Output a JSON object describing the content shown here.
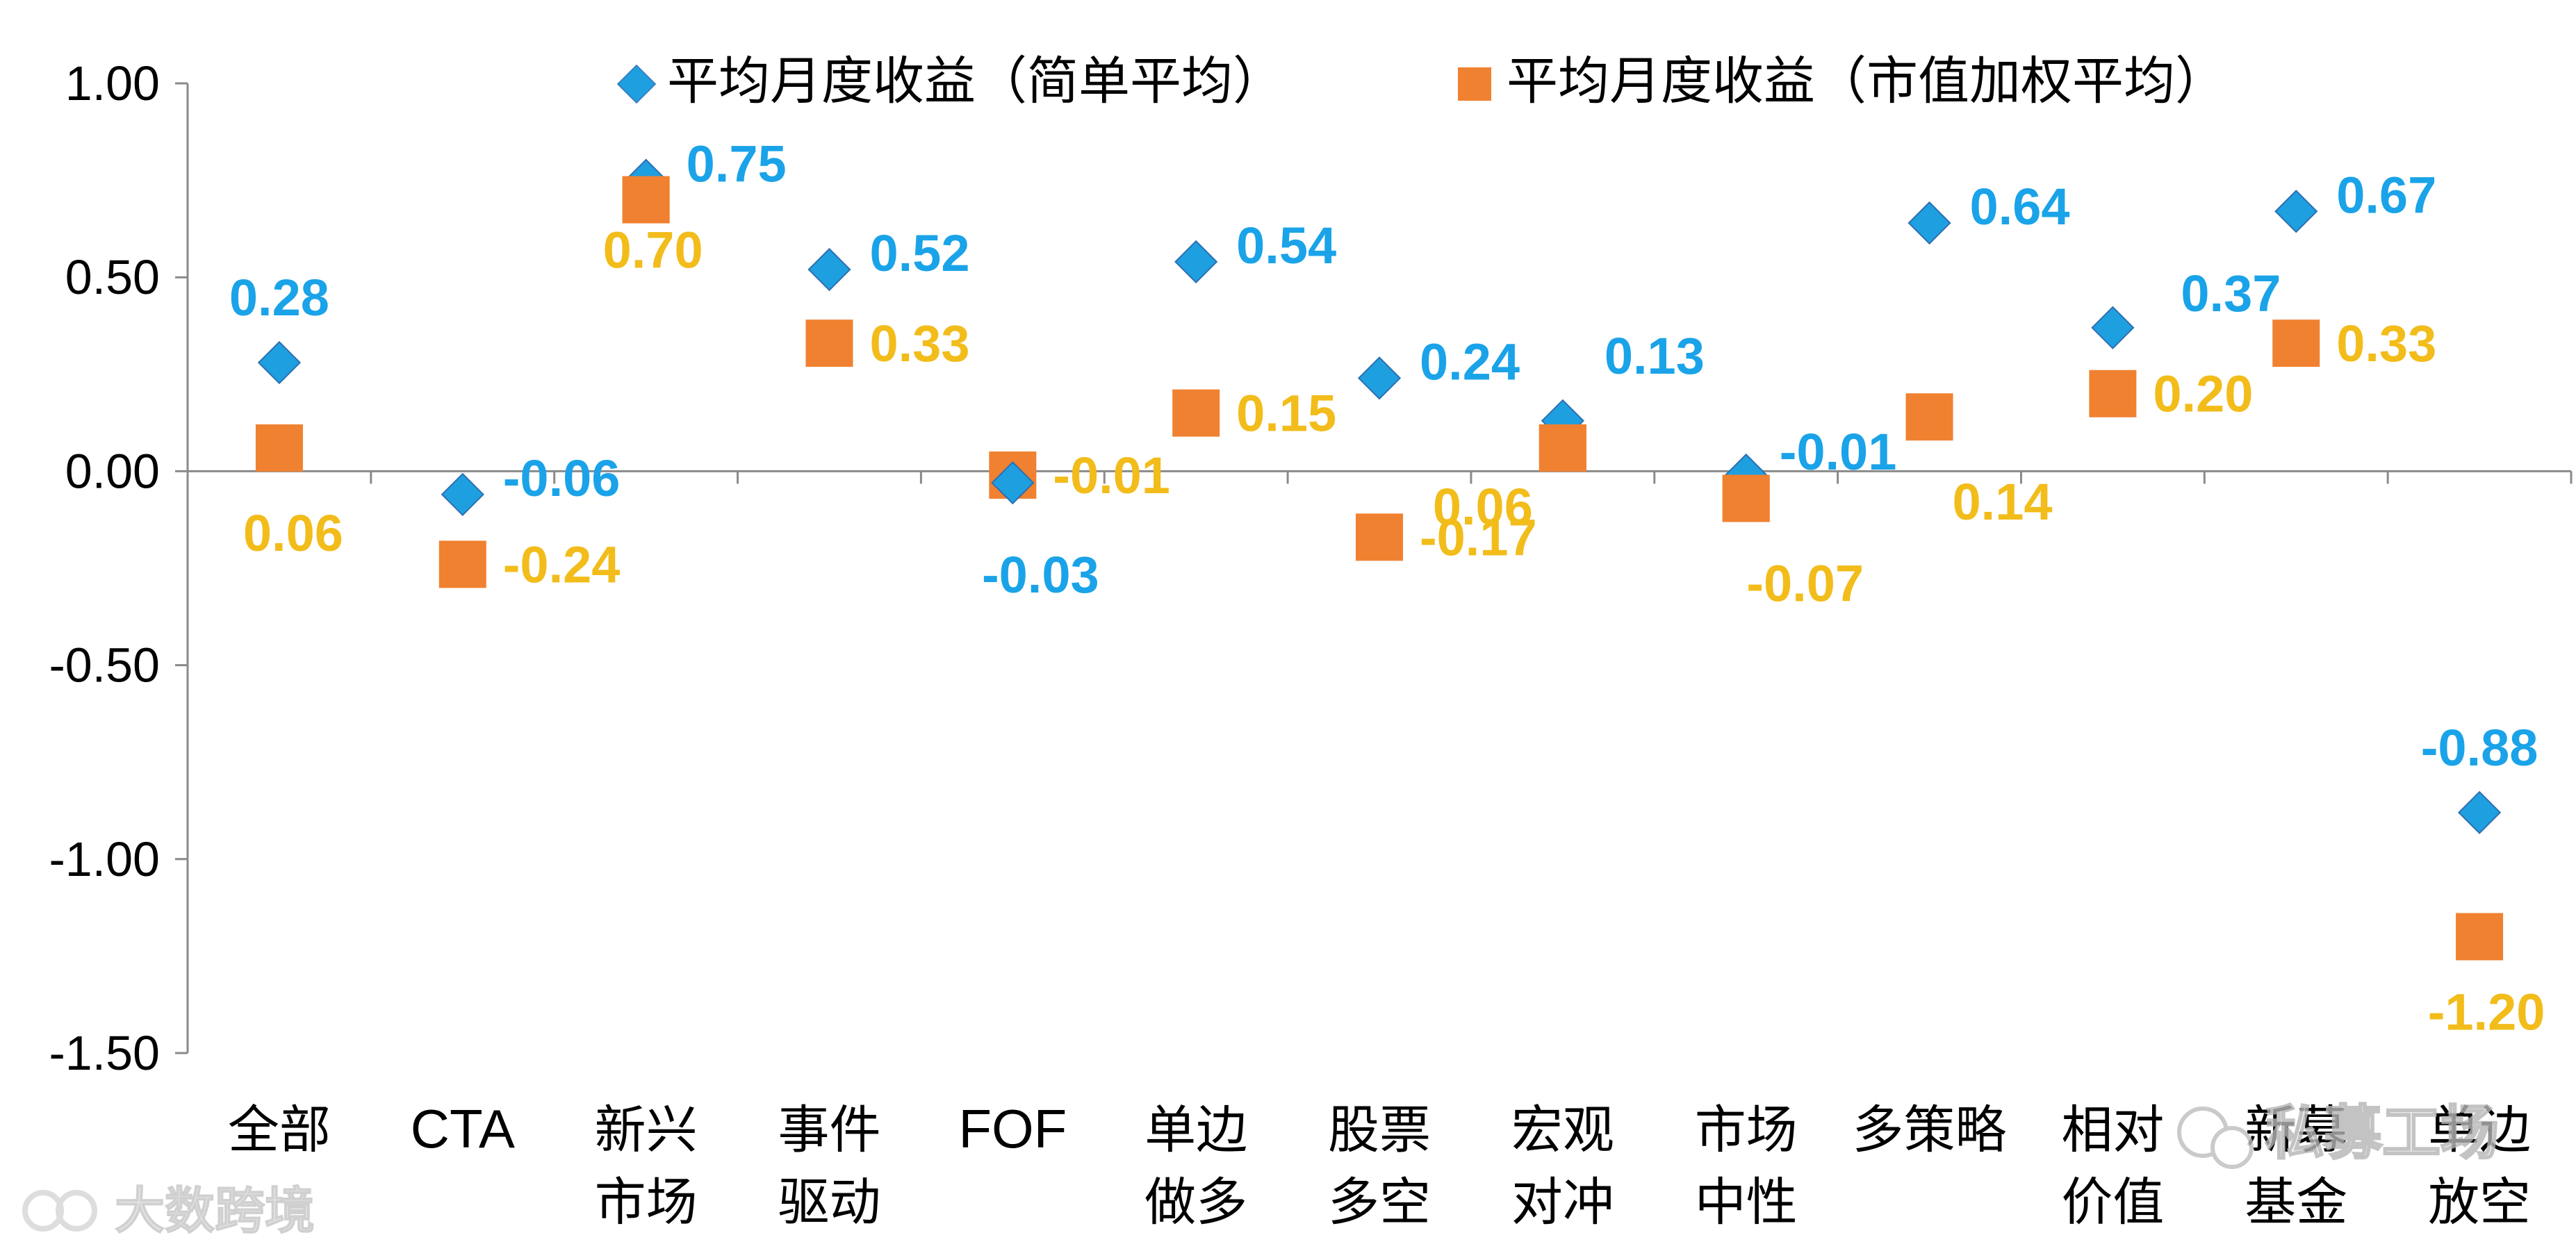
{
  "chart_data": {
    "type": "scatter",
    "title": "",
    "xlabel": "",
    "ylabel": "",
    "ylim": [
      -1.5,
      1.0
    ],
    "y_ticks": [
      "1.00",
      "0.50",
      "0.00",
      "-0.50",
      "-1.00",
      "-1.50"
    ],
    "categories": [
      [
        "全部"
      ],
      [
        "CTA"
      ],
      [
        "新兴",
        "市场"
      ],
      [
        "事件",
        "驱动"
      ],
      [
        "FOF"
      ],
      [
        "单边",
        "做多"
      ],
      [
        "股票",
        "多空"
      ],
      [
        "宏观",
        "对冲"
      ],
      [
        "市场",
        "中性"
      ],
      [
        "多策略"
      ],
      [
        "相对",
        "价值"
      ],
      [
        "新募",
        "基金"
      ],
      [
        "单边",
        "放空"
      ]
    ],
    "series": [
      {
        "name": "平均月度收益（简单平均）",
        "marker": "diamond",
        "color": "#1E9FE0",
        "label_color": "#1AA3E8",
        "values": [
          0.28,
          -0.06,
          0.75,
          0.52,
          -0.03,
          0.54,
          0.24,
          0.13,
          -0.01,
          0.64,
          0.37,
          0.67,
          -0.88
        ],
        "labels": [
          "0.28",
          "-0.06",
          "0.75",
          "0.52",
          "-0.03",
          "0.54",
          "0.24",
          "0.13",
          "-0.01",
          "0.64",
          "0.37",
          "0.67",
          "-0.88"
        ]
      },
      {
        "name": "平均月度收益（市值加权平均）",
        "marker": "square",
        "color": "#F08130",
        "label_color": "#F2BC1A",
        "values": [
          0.06,
          -0.24,
          0.7,
          0.33,
          -0.01,
          0.15,
          -0.17,
          0.06,
          -0.07,
          0.14,
          0.2,
          0.33,
          -1.2
        ],
        "labels": [
          "0.06",
          "-0.24",
          "0.70",
          "0.33",
          "-0.01",
          "0.15",
          "-0.17",
          "0.06",
          "-0.07",
          "0.14",
          "0.20",
          "0.33",
          "-1.20"
        ]
      }
    ],
    "legend_position": "top-center",
    "grid": false
  },
  "watermarks": {
    "left": "大数跨境",
    "right": "私募工场"
  }
}
